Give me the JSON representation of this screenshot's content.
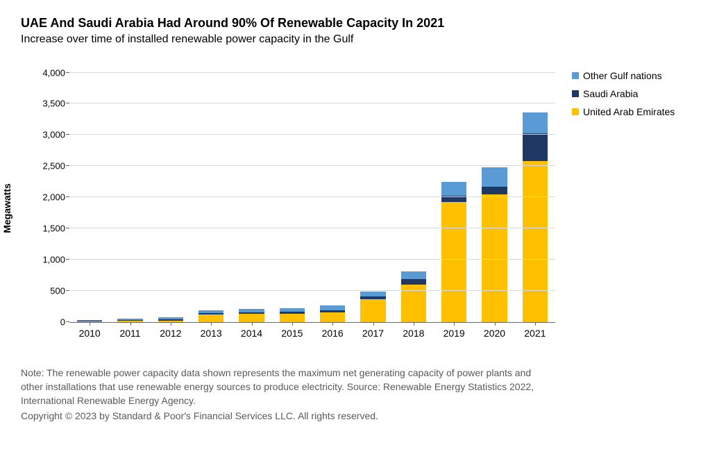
{
  "title": "UAE And Saudi Arabia Had Around 90% Of Renewable Capacity In 2021",
  "subtitle": "Increase over time of installed renewable power capacity in the Gulf",
  "chart": {
    "type": "stacked-bar",
    "ylabel": "Megawatts",
    "ylim_max": 4000,
    "ytick_step": 500,
    "yticks": [
      0,
      500,
      1000,
      1500,
      2000,
      2500,
      3000,
      3500,
      4000
    ],
    "ytick_labels": [
      "0",
      "500",
      "1,000",
      "1,500",
      "2,000",
      "2,500",
      "3,000",
      "3,500",
      "4,000"
    ],
    "categories": [
      "2010",
      "2011",
      "2012",
      "2013",
      "2014",
      "2015",
      "2016",
      "2017",
      "2018",
      "2019",
      "2020",
      "2021"
    ],
    "series": [
      {
        "name": "United Arab Emirates",
        "color": "#ffc000",
        "values": [
          10,
          15,
          20,
          120,
          130,
          130,
          150,
          360,
          600,
          1920,
          2050,
          2580
        ]
      },
      {
        "name": "Saudi Arabia",
        "color": "#1f3864",
        "values": [
          5,
          10,
          15,
          20,
          25,
          30,
          30,
          50,
          90,
          100,
          120,
          440
        ]
      },
      {
        "name": "Other Gulf nations",
        "color": "#5b9bd5",
        "values": [
          10,
          25,
          35,
          45,
          55,
          55,
          80,
          80,
          120,
          220,
          310,
          340
        ]
      }
    ],
    "bar_width_ratio": 0.62,
    "background_color": "#ffffff",
    "grid_color": "#d9d9d9",
    "axis_color": "#666666",
    "label_fontsize": 14,
    "tick_fontsize": 13,
    "title_fontsize": 18
  },
  "legend": {
    "items": [
      {
        "label": "Other Gulf nations",
        "color": "#5b9bd5"
      },
      {
        "label": "Saudi Arabia",
        "color": "#1f3864"
      },
      {
        "label": "United Arab Emirates",
        "color": "#ffc000"
      }
    ]
  },
  "footnote": {
    "note": "Note: The renewable power capacity data shown represents the maximum net generating capacity of power plants and other installations that use renewable energy sources to produce electricity. Source: Renewable Energy Statistics 2022, International Renewable Energy Agency.",
    "copyright": "Copyright © 2023 by Standard & Poor's Financial Services LLC. All rights reserved."
  }
}
